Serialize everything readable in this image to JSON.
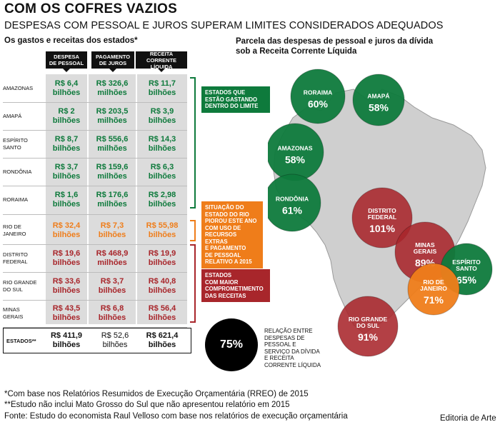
{
  "title": "COM OS COFRES VAZIOS",
  "subtitle": "DESPESAS COM PESSOAL E JUROS SUPERAM LIMITES CONSIDERADOS ADEQUADOS",
  "left_heading": "Os gastos e receitas dos estados*",
  "right_heading_1": "Parcela das despesas de pessoal e juros da dívida",
  "right_heading_2": "sob a Receita Corrente Líquida",
  "colors": {
    "green": "#0e7a3c",
    "orange": "#ef7d1a",
    "red": "#a8262b",
    "black": "#000000"
  },
  "table": {
    "columns": [
      {
        "line1": "DESPESA",
        "line2": "DE PESSOAL"
      },
      {
        "line1": "PAGAMENTO",
        "line2": "DE JUROS"
      },
      {
        "line1": "RECEITA",
        "line2": "CORRENTE LÍQUIDA"
      }
    ],
    "rows": [
      {
        "state_1": "AMAZONAS",
        "state_2": "",
        "personnel": [
          "R$ 6,4",
          "bilhões"
        ],
        "interest": [
          "R$ 326,6",
          "milhões"
        ],
        "revenue": [
          "R$ 11,7",
          "bilhões"
        ],
        "group": "green"
      },
      {
        "state_1": "AMAPÁ",
        "state_2": "",
        "personnel": [
          "R$ 2",
          "bilhões"
        ],
        "interest": [
          "R$ 203,5",
          "milhões"
        ],
        "revenue": [
          "R$ 3,9",
          "bilhões"
        ],
        "group": "green"
      },
      {
        "state_1": "ESPÍRITO",
        "state_2": "SANTO",
        "personnel": [
          "R$ 8,7",
          "bilhões"
        ],
        "interest": [
          "R$ 556,6",
          "milhões"
        ],
        "revenue": [
          "R$ 14,3",
          "bilhões"
        ],
        "group": "green"
      },
      {
        "state_1": "RONDÔNIA",
        "state_2": "",
        "personnel": [
          "R$ 3,7",
          "bilhões"
        ],
        "interest": [
          "R$ 159,6",
          "milhões"
        ],
        "revenue": [
          "R$ 6,3",
          "bilhões"
        ],
        "group": "green"
      },
      {
        "state_1": "RORAIMA",
        "state_2": "",
        "personnel": [
          "R$ 1,6",
          "bilhões"
        ],
        "interest": [
          "R$ 176,6",
          "milhões"
        ],
        "revenue": [
          "R$ 2,98",
          "bilhões"
        ],
        "group": "green"
      },
      {
        "state_1": "RIO DE",
        "state_2": "JANEIRO",
        "personnel": [
          "R$ 32,4",
          "bilhões"
        ],
        "interest": [
          "R$ 7,3",
          "bilhões"
        ],
        "revenue": [
          "R$ 55,98",
          "bilhões"
        ],
        "group": "orange"
      },
      {
        "state_1": "DISTRITO",
        "state_2": "FEDERAL",
        "personnel": [
          "R$ 19,6",
          "bilhões"
        ],
        "interest": [
          "R$ 468,9",
          "milhões"
        ],
        "revenue": [
          "R$ 19,9",
          "bilhões"
        ],
        "group": "red"
      },
      {
        "state_1": "RIO GRANDE",
        "state_2": "DO SUL",
        "personnel": [
          "R$ 33,6",
          "bilhões"
        ],
        "interest": [
          "R$ 3,7",
          "bilhões"
        ],
        "revenue": [
          "R$ 40,8",
          "bilhões"
        ],
        "group": "red"
      },
      {
        "state_1": "MINAS",
        "state_2": "GERAIS",
        "personnel": [
          "R$ 43,5",
          "bilhões"
        ],
        "interest": [
          "R$ 6,8",
          "bilhões"
        ],
        "revenue": [
          "R$ 56,4",
          "bilhões"
        ],
        "group": "red"
      }
    ],
    "total": {
      "label": "ESTADOS**",
      "personnel": [
        "R$ 411,9",
        "bilhões"
      ],
      "interest": [
        "R$ 52,6",
        "bilhões"
      ],
      "revenue": [
        "R$ 621,4",
        "bilhões"
      ]
    }
  },
  "callouts": {
    "green": [
      "ESTADOS QUE",
      "ESTÃO GASTANDO",
      "DENTRO DO LIMITE"
    ],
    "orange": [
      "SITUAÇÃO DO",
      "ESTADO DO RIO",
      "PIOROU ESTE ANO",
      "COM USO DE",
      "RECURSOS EXTRAS",
      "E PAGAMENTO",
      "DE PESSOAL",
      "RELATIVO A 2015"
    ],
    "red": [
      "ESTADOS",
      "COM MAIOR",
      "COMPROMETIMENTO",
      "DAS RECEITAS"
    ]
  },
  "chart_data": {
    "type": "map-bubble",
    "title": "Parcela das despesas de pessoal e juros da dívida sob a Receita Corrente Líquida",
    "unit": "%",
    "states": [
      {
        "name": "RORAIMA",
        "value": 60,
        "group": "green"
      },
      {
        "name": "AMAPÁ",
        "value": 58,
        "group": "green"
      },
      {
        "name": "AMAZONAS",
        "value": 58,
        "group": "green"
      },
      {
        "name": "RONDÔNIA",
        "value": 61,
        "group": "green"
      },
      {
        "name": "DISTRITO FEDERAL",
        "value": 101,
        "group": "red"
      },
      {
        "name": "MINAS GERAIS",
        "value": 89,
        "group": "red"
      },
      {
        "name": "ESPÍRITO SANTO",
        "value": 65,
        "group": "green"
      },
      {
        "name": "RIO DE JANEIRO",
        "value": 71,
        "group": "orange"
      },
      {
        "name": "RIO GRANDE DO SUL",
        "value": 91,
        "group": "red"
      }
    ],
    "total": {
      "value": 75,
      "label": [
        "RELAÇÃO ENTRE",
        "DESPESAS DE",
        "PESSOAL E",
        "SERVIÇO DA DÍVIDA",
        "E RECEITA",
        "CORRENTE LÍQUIDA"
      ]
    }
  },
  "footnotes": {
    "note1": "*Com base nos Relatórios Resumidos de Execução Orçamentária (RREO) de 2015",
    "note2": "**Estudo não inclui Mato Grosso do Sul que não apresentou relatório em 2015",
    "source": "Fonte: Estudo do economista Raul Velloso com base nos relatórios de execução orçamentária",
    "credit": "Editoria de Arte"
  }
}
